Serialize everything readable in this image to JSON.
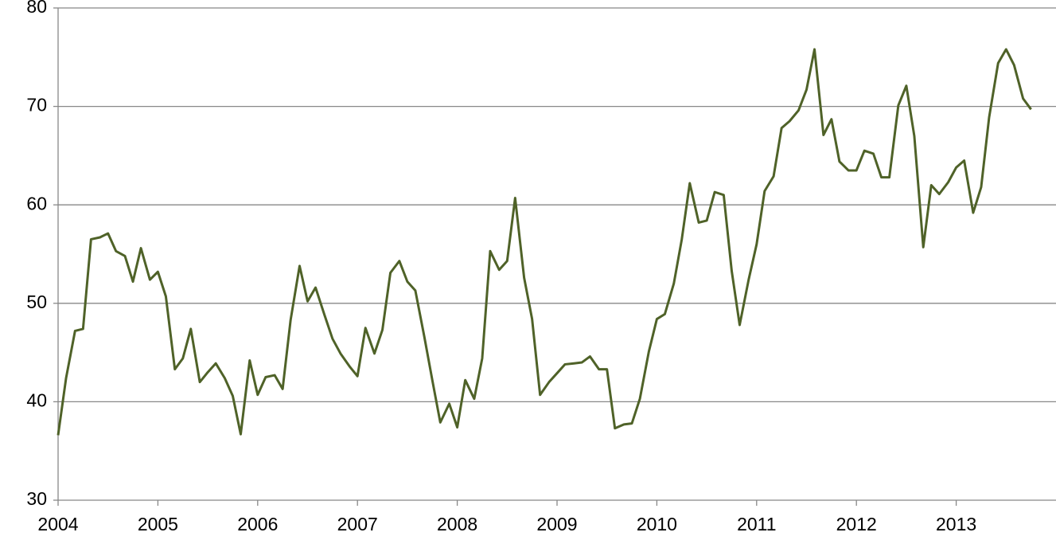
{
  "chart_data": {
    "type": "line",
    "x": [
      2004.0,
      2004.08,
      2004.17,
      2004.25,
      2004.33,
      2004.42,
      2004.5,
      2004.58,
      2004.67,
      2004.75,
      2004.83,
      2004.92,
      2005.0,
      2005.08,
      2005.17,
      2005.25,
      2005.33,
      2005.42,
      2005.5,
      2005.58,
      2005.67,
      2005.75,
      2005.83,
      2005.92,
      2006.0,
      2006.08,
      2006.17,
      2006.25,
      2006.33,
      2006.42,
      2006.5,
      2006.58,
      2006.67,
      2006.75,
      2006.83,
      2006.92,
      2007.0,
      2007.08,
      2007.17,
      2007.25,
      2007.33,
      2007.42,
      2007.5,
      2007.58,
      2007.67,
      2007.75,
      2007.83,
      2007.92,
      2008.0,
      2008.08,
      2008.17,
      2008.25,
      2008.33,
      2008.42,
      2008.5,
      2008.58,
      2008.67,
      2008.75,
      2008.83,
      2008.92,
      2009.0,
      2009.08,
      2009.17,
      2009.25,
      2009.33,
      2009.42,
      2009.5,
      2009.58,
      2009.67,
      2009.75,
      2009.83,
      2009.92,
      2010.0,
      2010.08,
      2010.17,
      2010.25,
      2010.33,
      2010.42,
      2010.5,
      2010.58,
      2010.67,
      2010.75,
      2010.83,
      2010.92,
      2011.0,
      2011.08,
      2011.17,
      2011.25,
      2011.33,
      2011.42,
      2011.5,
      2011.58,
      2011.67,
      2011.75,
      2011.83,
      2011.92,
      2012.0,
      2012.08,
      2012.17,
      2012.25,
      2012.33,
      2012.42,
      2012.5,
      2012.58,
      2012.67,
      2012.75,
      2012.83,
      2012.92,
      2013.0,
      2013.08,
      2013.17,
      2013.25,
      2013.33,
      2013.42,
      2013.5,
      2013.58,
      2013.67,
      2013.75
    ],
    "series": [
      {
        "color": "#4f6228",
        "values": [
          36.6,
          42.4,
          47.2,
          47.4,
          56.5,
          56.7,
          57.1,
          55.3,
          54.8,
          52.2,
          55.6,
          52.4,
          53.2,
          50.7,
          43.3,
          44.4,
          47.4,
          42.0,
          43.0,
          43.9,
          42.4,
          40.6,
          36.7,
          44.2,
          40.7,
          42.5,
          42.7,
          41.3,
          48.3,
          53.8,
          50.2,
          51.6,
          48.8,
          46.4,
          44.9,
          43.6,
          42.6,
          47.5,
          44.9,
          47.3,
          53.1,
          54.3,
          52.2,
          51.3,
          46.6,
          42.2,
          37.9,
          39.8,
          37.4,
          42.2,
          40.3,
          44.4,
          55.3,
          53.4,
          54.3,
          60.7,
          52.6,
          48.4,
          40.7,
          42.0,
          42.9,
          43.8,
          43.9,
          44.0,
          44.6,
          43.3,
          43.3,
          37.3,
          37.7,
          37.8,
          40.3,
          45.1,
          48.4,
          48.9,
          52.0,
          56.5,
          62.2,
          58.2,
          58.4,
          61.3,
          61.0,
          53.3,
          47.8,
          52.4,
          56.0,
          61.4,
          62.9,
          67.8,
          68.5,
          69.6,
          71.7,
          75.8,
          67.1,
          68.7,
          64.4,
          63.5,
          63.5,
          65.5,
          65.2,
          62.8,
          62.8,
          70.1,
          72.1,
          67.0,
          55.7,
          62.0,
          61.1,
          62.3,
          63.8,
          64.5,
          59.2,
          61.8,
          68.9,
          74.4,
          75.8,
          74.2,
          70.8,
          69.7
        ]
      }
    ],
    "xlim": [
      2004,
      2014
    ],
    "xticks": [
      2004,
      2005,
      2006,
      2007,
      2008,
      2009,
      2010,
      2011,
      2012,
      2013
    ],
    "ylim": [
      30,
      80
    ],
    "yticks": [
      30,
      40,
      50,
      60,
      70,
      80
    ],
    "grid": true
  }
}
